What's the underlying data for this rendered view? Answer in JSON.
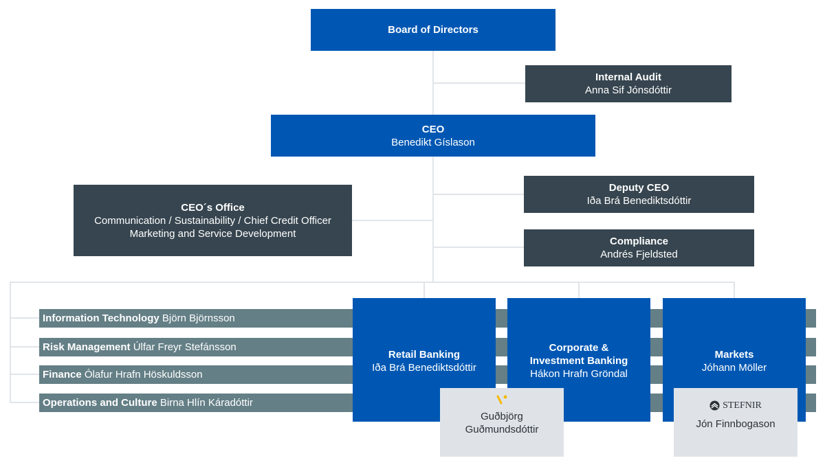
{
  "board": {
    "title": "Board of Directors"
  },
  "audit": {
    "title": "Internal Audit",
    "name": "Anna Sif Jónsdóttir"
  },
  "ceo": {
    "title": "CEO",
    "name": "Benedikt Gíslason"
  },
  "ceo_office": {
    "title": "CEO´s Office",
    "line1": "Communication / Sustainability / Chief Credit Officer",
    "line2": "Marketing and Service Development"
  },
  "deputy": {
    "title": "Deputy CEO",
    "name": "Iða Brá Benediktsdóttir"
  },
  "compliance": {
    "title": "Compliance",
    "name": "Andrés Fjeldsted"
  },
  "support": [
    {
      "title": "Information Technology",
      "name": "Björn Björnsson"
    },
    {
      "title": "Risk Management",
      "name": "Úlfar Freyr Stefánsson"
    },
    {
      "title": "Finance",
      "name": "Ólafur Hrafn Höskuldsson"
    },
    {
      "title": "Operations and Culture",
      "name": "Birna Hlín Káradóttir"
    }
  ],
  "divisions": [
    {
      "title": "Retail Banking",
      "name": "Iða Brá Benediktsdóttir"
    },
    {
      "title": "Corporate &",
      "title2": "Investment Banking",
      "name": "Hákon Hrafn Gröndal"
    },
    {
      "title": "Markets",
      "name": "Jóhann Möller"
    }
  ],
  "subsidiaries": [
    {
      "name1": "Guðbjörg",
      "name2": "Guðmundsdóttir",
      "logo_color": "#f5b800"
    },
    {
      "logo": "STEFNIR",
      "name1": "Jón Finnbogason"
    }
  ],
  "colors": {
    "primary": "#0057b3",
    "dark": "#36454f",
    "support": "#647f86",
    "subsidiary": "#dfe3e8"
  }
}
